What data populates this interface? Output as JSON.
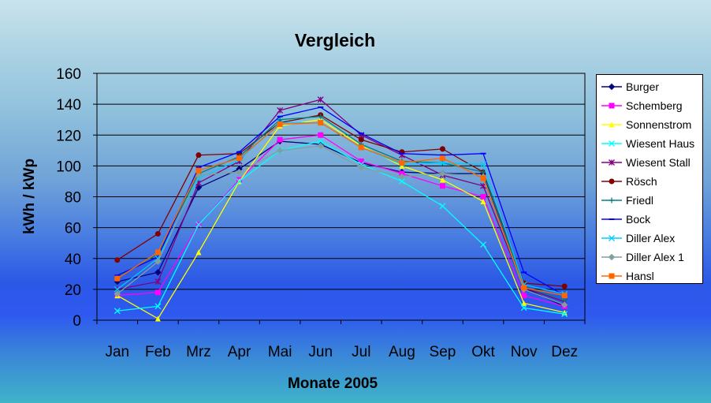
{
  "chart_data": {
    "type": "line",
    "title": "Vergleich",
    "xlabel": "Monate 2005",
    "ylabel": "kWh / kWp",
    "categories": [
      "Jan",
      "Feb",
      "Mrz",
      "Apr",
      "Mai",
      "Jun",
      "Jul",
      "Aug",
      "Sep",
      "Okt",
      "Nov",
      "Dez"
    ],
    "ylim": [
      0,
      160
    ],
    "yticks": [
      "0",
      "20",
      "40",
      "60",
      "80",
      "100",
      "120",
      "140",
      "160"
    ],
    "grid": "horizontal",
    "legend_position": "right",
    "series": [
      {
        "name": "Burger",
        "color": "#000080",
        "marker": "diamond",
        "values": [
          25,
          31,
          86,
          98,
          116,
          114,
          102,
          96,
          95,
          95,
          21,
          9
        ]
      },
      {
        "name": "Schemberg",
        "color": "#ff00ff",
        "marker": "square",
        "values": [
          16,
          18,
          62,
          91,
          117,
          120,
          103,
          95,
          87,
          80,
          16,
          9
        ]
      },
      {
        "name": "Sonnenstrom",
        "color": "#ffff00",
        "marker": "triangle",
        "values": [
          16,
          1,
          44,
          90,
          126,
          130,
          113,
          100,
          91,
          77,
          11,
          5
        ]
      },
      {
        "name": "Wiesent Haus",
        "color": "#00ffff",
        "marker": "x",
        "values": [
          6,
          9,
          62,
          90,
          110,
          116,
          101,
          90,
          74,
          49,
          8,
          4
        ]
      },
      {
        "name": "Wiesent Stall",
        "color": "#800080",
        "marker": "star",
        "values": [
          20,
          25,
          89,
          103,
          136,
          143,
          120,
          107,
          94,
          87,
          21,
          12
        ]
      },
      {
        "name": "Rösch",
        "color": "#800000",
        "marker": "circle",
        "values": [
          39,
          56,
          107,
          108,
          128,
          133,
          117,
          109,
          111,
          96,
          24,
          22
        ]
      },
      {
        "name": "Friedl",
        "color": "#008080",
        "marker": "plus",
        "values": [
          28,
          43,
          95,
          106,
          130,
          132,
          114,
          103,
          102,
          96,
          22,
          13
        ]
      },
      {
        "name": "Bock",
        "color": "#0000ff",
        "marker": "dash",
        "values": [
          29,
          41,
          99,
          109,
          132,
          138,
          121,
          108,
          107,
          108,
          31,
          16
        ]
      },
      {
        "name": "Diller Alex",
        "color": "#00ccff",
        "marker": "x",
        "values": [
          20,
          40,
          92,
          104,
          128,
          128,
          112,
          101,
          102,
          101,
          23,
          17
        ]
      },
      {
        "name": "Diller Alex 1",
        "color": "#80a0a0",
        "marker": "diamond",
        "values": [
          17,
          38,
          94,
          96,
          110,
          113,
          99,
          93,
          95,
          93,
          20,
          10
        ]
      },
      {
        "name": "Hansl",
        "color": "#ff6600",
        "marker": "square",
        "values": [
          27,
          44,
          97,
          105,
          127,
          128,
          112,
          102,
          105,
          92,
          21,
          16
        ]
      }
    ]
  }
}
